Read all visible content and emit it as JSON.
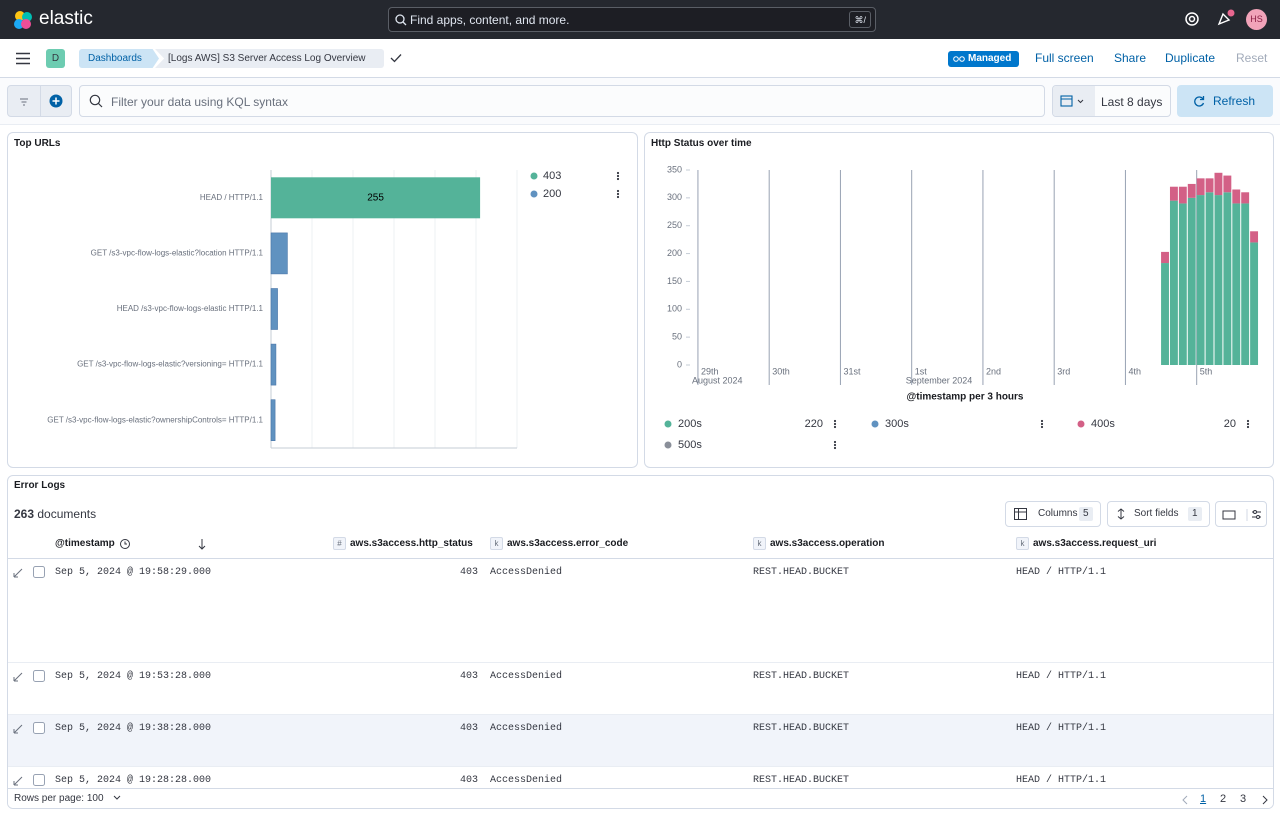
{
  "header": {
    "logo": "elastic",
    "search_placeholder": "Find apps, content, and more.",
    "shortcut": "⌘/",
    "avatar": "HS"
  },
  "nav": {
    "space": "D",
    "breadcrumbs": [
      "Dashboards",
      "[Logs AWS] S3 Server Access Log Overview"
    ],
    "badge": "Managed",
    "actions": [
      "Full screen",
      "Share",
      "Duplicate",
      "Reset"
    ]
  },
  "query_bar": {
    "placeholder": "Filter your data using KQL syntax",
    "time_range": "Last 8 days",
    "refresh": "Refresh"
  },
  "chart_data": [
    {
      "type": "bar",
      "orientation": "horizontal",
      "title": "Top URLs",
      "categories": [
        "HEAD / HTTP/1.1",
        "GET /s3-vpc-flow-logs-elastic?location HTTP/1.1",
        "HEAD /s3-vpc-flow-logs-elastic HTTP/1.1",
        "GET /s3-vpc-flow-logs-elastic?versioning= HTTP/1.1",
        "GET /s3-vpc-flow-logs-elastic?ownershipControls= HTTP/1.1"
      ],
      "series": [
        {
          "name": "403",
          "color": "#54b399",
          "values": [
            255,
            null,
            null,
            null,
            null
          ]
        },
        {
          "name": "200",
          "color": "#6092c0",
          "values": [
            null,
            20,
            8,
            6,
            5
          ]
        }
      ],
      "xlim": [
        0,
        300
      ],
      "data_labels": true,
      "legend": "right"
    },
    {
      "type": "stacked-bar",
      "title": "Http Status over time",
      "xlabel": "@timestamp per 3 hours",
      "x": [
        "2024-09-04T12:00",
        "2024-09-04T15:00",
        "2024-09-04T18:00",
        "2024-09-04T21:00",
        "2024-09-05T00:00",
        "2024-09-05T03:00",
        "2024-09-05T06:00",
        "2024-09-05T09:00",
        "2024-09-05T12:00",
        "2024-09-05T15:00",
        "2024-09-05T18:00"
      ],
      "series": [
        {
          "name": "200s",
          "color": "#54b399",
          "values": [
            183,
            295,
            290,
            300,
            305,
            310,
            305,
            310,
            290,
            290,
            220
          ]
        },
        {
          "name": "300s",
          "color": "#6092c0",
          "values": [
            null,
            null,
            null,
            null,
            null,
            null,
            null,
            null,
            null,
            null,
            null
          ]
        },
        {
          "name": "400s",
          "color": "#d36086",
          "values": [
            20,
            25,
            30,
            25,
            30,
            25,
            40,
            30,
            25,
            20,
            20
          ]
        },
        {
          "name": "500s",
          "color": "#8a8f99",
          "values": [
            null,
            null,
            null,
            null,
            null,
            null,
            null,
            null,
            null,
            null,
            null
          ]
        }
      ],
      "xlim": [
        "2024-08-28T22:00",
        "2024-09-05T22:00"
      ],
      "xticks": [
        {
          "value": "2024-08-29",
          "label": "29th",
          "sublabel": "August 2024"
        },
        {
          "value": "2024-08-30",
          "label": "30th"
        },
        {
          "value": "2024-08-31",
          "label": "31st"
        },
        {
          "value": "2024-09-01",
          "label": "1st",
          "sublabel": "September 2024"
        },
        {
          "value": "2024-09-02",
          "label": "2nd"
        },
        {
          "value": "2024-09-03",
          "label": "3rd"
        },
        {
          "value": "2024-09-04",
          "label": "4th"
        },
        {
          "value": "2024-09-05",
          "label": "5th"
        }
      ],
      "ylim": [
        0,
        350
      ],
      "yticks": [
        0,
        50,
        100,
        150,
        200,
        250,
        300,
        350
      ],
      "grid": false,
      "legend": "bottom"
    }
  ],
  "error_logs": {
    "title": "Error Logs",
    "count": 263,
    "count_label": "documents",
    "toolbar": {
      "columns": "Columns",
      "columns_count": 5,
      "sort": "Sort fields",
      "sort_count": 1
    },
    "columns": [
      {
        "label": "@timestamp"
      },
      {
        "label": "aws.s3access.http_status",
        "type": "#"
      },
      {
        "label": "aws.s3access.error_code",
        "type": "k"
      },
      {
        "label": "aws.s3access.operation",
        "type": "k"
      },
      {
        "label": "aws.s3access.request_uri",
        "type": "k"
      }
    ],
    "rows": [
      [
        "Sep 5, 2024 @ 19:58:29.000",
        403,
        "AccessDenied",
        "REST.HEAD.BUCKET",
        "HEAD / HTTP/1.1"
      ],
      [
        "Sep 5, 2024 @ 19:53:28.000",
        403,
        "AccessDenied",
        "REST.HEAD.BUCKET",
        "HEAD / HTTP/1.1"
      ],
      [
        "Sep 5, 2024 @ 19:38:28.000",
        403,
        "AccessDenied",
        "REST.HEAD.BUCKET",
        "HEAD / HTTP/1.1"
      ],
      [
        "Sep 5, 2024 @ 19:28:28.000",
        403,
        "AccessDenied",
        "REST.HEAD.BUCKET",
        "HEAD / HTTP/1.1"
      ]
    ],
    "footer": {
      "rows_per_page": "Rows per page: 100",
      "pages": [
        1,
        2,
        3
      ]
    }
  }
}
